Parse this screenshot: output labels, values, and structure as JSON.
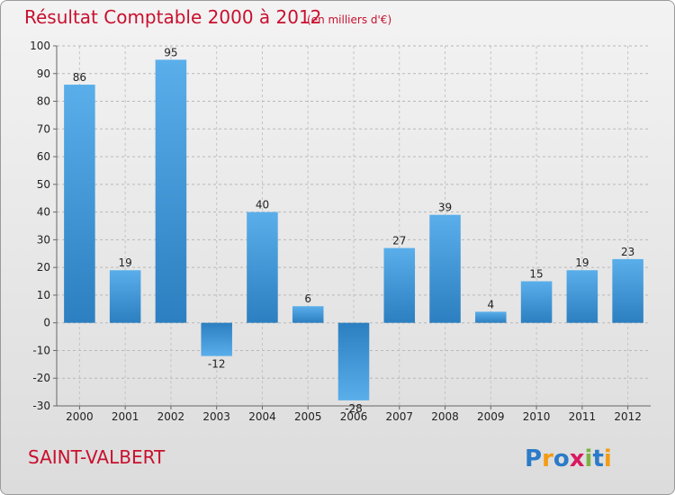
{
  "chart_data": {
    "type": "bar",
    "title": "Résultat Comptable 2000 à 2012",
    "subtitle": "(en milliers d'€)",
    "categories": [
      "2000",
      "2001",
      "2002",
      "2003",
      "2004",
      "2005",
      "2006",
      "2007",
      "2008",
      "2009",
      "2010",
      "2011",
      "2012"
    ],
    "values": [
      86,
      19,
      95,
      -12,
      40,
      6,
      -28,
      27,
      39,
      4,
      15,
      19,
      23
    ],
    "ylim": [
      -30,
      100
    ],
    "yticks": [
      100,
      90,
      80,
      70,
      60,
      50,
      40,
      30,
      20,
      10,
      0,
      -10,
      -20,
      -30
    ],
    "xlabel": "",
    "ylabel": "",
    "grid": true,
    "bar_color": "#3a8fd6"
  },
  "location_name": "SAINT-VALBERT",
  "brand": {
    "text": "Proxiti",
    "letters": [
      {
        "ch": "P",
        "color": "#2b7bc8"
      },
      {
        "ch": "r",
        "color": "#f39c12"
      },
      {
        "ch": "o",
        "color": "#2b7bc8"
      },
      {
        "ch": "x",
        "color": "#d81b60"
      },
      {
        "ch": "i",
        "color": "#7cb342"
      },
      {
        "ch": "t",
        "color": "#2b7bc8"
      },
      {
        "ch": "i",
        "color": "#f39c12"
      }
    ]
  }
}
